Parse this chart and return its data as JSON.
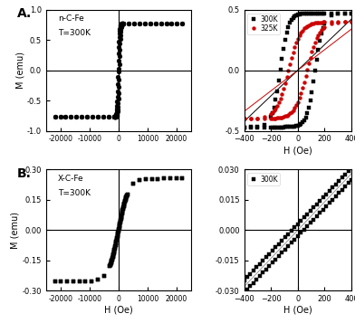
{
  "panel_A_label": "A.",
  "panel_B_label": "B.",
  "panel_A_text1": "n-C-Fe",
  "panel_A_text2": "T=300K",
  "panel_B_text1": "X-C-Fe",
  "panel_B_text2": "T=300K",
  "panel_A_ylabel": "M (emu)",
  "panel_B_ylabel": "M (emu)",
  "panel_B_xlabel": "H (Oe)",
  "panel_AR_xlabel": "H (Oe)",
  "panel_BR_xlabel": "H (Oe)",
  "legend_300K": "300K",
  "legend_325K": "325K",
  "color_black": "#000000",
  "color_red": "#cc0000",
  "color_gray": "#999999",
  "ms_large": 3.5,
  "ms_small": 2.8,
  "figsize": [
    3.92,
    3.57
  ],
  "dpi": 100,
  "panel_A_ylim": [
    -1.0,
    1.0
  ],
  "panel_A_xlim": [
    -25000,
    25000
  ],
  "panel_A_yticks": [
    -1.0,
    -0.5,
    0.0,
    0.5,
    1.0
  ],
  "panel_A_xticks": [
    -20000,
    -10000,
    0,
    10000,
    20000
  ],
  "panel_B_ylim": [
    -0.3,
    0.3
  ],
  "panel_B_xlim": [
    -25000,
    25000
  ],
  "panel_B_yticks": [
    -0.3,
    -0.15,
    0.0,
    0.15,
    0.3
  ],
  "panel_B_xticks": [
    -20000,
    -10000,
    0,
    10000,
    20000
  ],
  "panel_AR_ylim": [
    -0.5,
    0.5
  ],
  "panel_AR_xlim": [
    -400,
    400
  ],
  "panel_AR_yticks": [
    -0.5,
    0.0,
    0.5
  ],
  "panel_AR_xticks": [
    -400,
    -200,
    0,
    200,
    400
  ],
  "panel_BR_ylim": [
    -0.03,
    0.03
  ],
  "panel_BR_xlim": [
    -400,
    400
  ],
  "panel_BR_yticks": [
    -0.03,
    -0.015,
    0.0,
    0.015,
    0.03
  ],
  "panel_BR_xticks": [
    -400,
    -200,
    0,
    200,
    400
  ]
}
